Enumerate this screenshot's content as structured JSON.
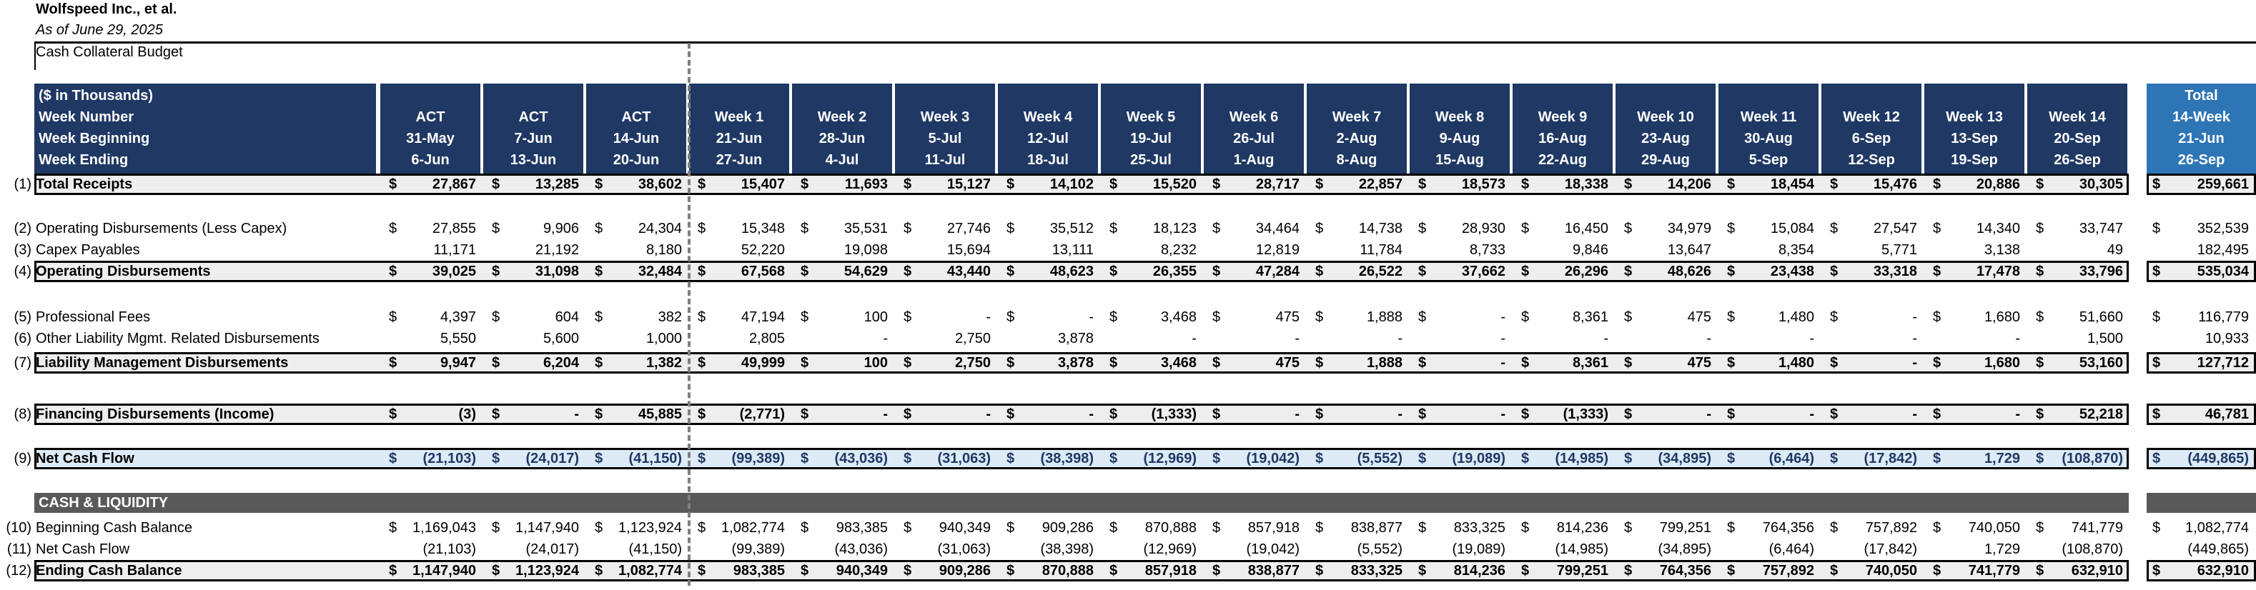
{
  "title": "Wolfspeed Inc., et al.",
  "as_of": "As of June 29, 2025",
  "section_title": "Cash Collateral Budget",
  "header": {
    "label_lines": [
      "($ in Thousands)",
      "Week Number",
      "Week Beginning",
      "Week Ending"
    ],
    "columns": [
      {
        "l1": "ACT",
        "l2": "31-May",
        "l3": "6-Jun"
      },
      {
        "l1": "ACT",
        "l2": "7-Jun",
        "l3": "13-Jun"
      },
      {
        "l1": "ACT",
        "l2": "14-Jun",
        "l3": "20-Jun"
      },
      {
        "l1": "Week 1",
        "l2": "21-Jun",
        "l3": "27-Jun"
      },
      {
        "l1": "Week 2",
        "l2": "28-Jun",
        "l3": "4-Jul"
      },
      {
        "l1": "Week 3",
        "l2": "5-Jul",
        "l3": "11-Jul"
      },
      {
        "l1": "Week 4",
        "l2": "12-Jul",
        "l3": "18-Jul"
      },
      {
        "l1": "Week 5",
        "l2": "19-Jul",
        "l3": "25-Jul"
      },
      {
        "l1": "Week 6",
        "l2": "26-Jul",
        "l3": "1-Aug"
      },
      {
        "l1": "Week 7",
        "l2": "2-Aug",
        "l3": "8-Aug"
      },
      {
        "l1": "Week 8",
        "l2": "9-Aug",
        "l3": "15-Aug"
      },
      {
        "l1": "Week 9",
        "l2": "16-Aug",
        "l3": "22-Aug"
      },
      {
        "l1": "Week 10",
        "l2": "23-Aug",
        "l3": "29-Aug"
      },
      {
        "l1": "Week 11",
        "l2": "30-Aug",
        "l3": "5-Sep"
      },
      {
        "l1": "Week 12",
        "l2": "6-Sep",
        "l3": "12-Sep"
      },
      {
        "l1": "Week 13",
        "l2": "13-Sep",
        "l3": "19-Sep"
      },
      {
        "l1": "Week 14",
        "l2": "20-Sep",
        "l3": "26-Sep"
      }
    ],
    "total": {
      "l0": "Total",
      "l1": "14-Week",
      "l2": "21-Jun",
      "l3": "26-Sep"
    }
  },
  "rows": [
    {
      "idx": "(1)",
      "label": "Total Receipts",
      "style": "boxed",
      "dollar": true,
      "values": [
        "27,867",
        "13,285",
        "38,602",
        "15,407",
        "11,693",
        "15,127",
        "14,102",
        "15,520",
        "28,717",
        "22,857",
        "18,573",
        "18,338",
        "14,206",
        "18,454",
        "15,476",
        "20,886",
        "30,305"
      ],
      "total": "259,661"
    },
    {
      "idx": "(2)",
      "label": "Operating Disbursements (Less Capex)",
      "style": "plain",
      "dollar": true,
      "values": [
        "27,855",
        "9,906",
        "24,304",
        "15,348",
        "35,531",
        "27,746",
        "35,512",
        "18,123",
        "34,464",
        "14,738",
        "28,930",
        "16,450",
        "34,979",
        "15,084",
        "27,547",
        "14,340",
        "33,747"
      ],
      "total": "352,539"
    },
    {
      "idx": "(3)",
      "label": "Capex Payables",
      "style": "plain",
      "dollar": false,
      "values": [
        "11,171",
        "21,192",
        "8,180",
        "52,220",
        "19,098",
        "15,694",
        "13,111",
        "8,232",
        "12,819",
        "11,784",
        "8,733",
        "9,846",
        "13,647",
        "8,354",
        "5,771",
        "3,138",
        "49"
      ],
      "total": "182,495"
    },
    {
      "idx": "(4)",
      "label": "Operating Disbursements",
      "style": "boxed",
      "dollar": true,
      "values": [
        "39,025",
        "31,098",
        "32,484",
        "67,568",
        "54,629",
        "43,440",
        "48,623",
        "26,355",
        "47,284",
        "26,522",
        "37,662",
        "26,296",
        "48,626",
        "23,438",
        "33,318",
        "17,478",
        "33,796"
      ],
      "total": "535,034"
    },
    {
      "idx": "(5)",
      "label": "Professional Fees",
      "style": "plain",
      "dollar": true,
      "values": [
        "4,397",
        "604",
        "382",
        "47,194",
        "100",
        "-",
        "-",
        "3,468",
        "475",
        "1,888",
        "-",
        "8,361",
        "475",
        "1,480",
        "-",
        "1,680",
        "51,660"
      ],
      "total": "116,779"
    },
    {
      "idx": "(6)",
      "label": "Other Liability Mgmt. Related Disbursements",
      "style": "plain",
      "dollar": false,
      "values": [
        "5,550",
        "5,600",
        "1,000",
        "2,805",
        "-",
        "2,750",
        "3,878",
        "-",
        "-",
        "-",
        "-",
        "-",
        "-",
        "-",
        "-",
        "-",
        "1,500"
      ],
      "total": "10,933"
    },
    {
      "idx": "(7)",
      "label": "Liability Management Disbursements",
      "style": "boxed",
      "dollar": true,
      "values": [
        "9,947",
        "6,204",
        "1,382",
        "49,999",
        "100",
        "2,750",
        "3,878",
        "3,468",
        "475",
        "1,888",
        "-",
        "8,361",
        "475",
        "1,480",
        "-",
        "1,680",
        "53,160"
      ],
      "total": "127,712"
    },
    {
      "idx": "(8)",
      "label": "Financing Disbursements (Income)",
      "style": "boxed",
      "dollar": true,
      "values": [
        "(3)",
        "-",
        "45,885",
        "(2,771)",
        "-",
        "-",
        "-",
        "(1,333)",
        "-",
        "-",
        "-",
        "(1,333)",
        "-",
        "-",
        "-",
        "-",
        "52,218"
      ],
      "total": "46,781"
    },
    {
      "idx": "(9)",
      "label": "Net Cash Flow",
      "style": "net",
      "dollar": true,
      "values": [
        "(21,103)",
        "(24,017)",
        "(41,150)",
        "(99,389)",
        "(43,036)",
        "(31,063)",
        "(38,398)",
        "(12,969)",
        "(19,042)",
        "(5,552)",
        "(19,089)",
        "(14,985)",
        "(34,895)",
        "(6,464)",
        "(17,842)",
        "1,729",
        "(108,870)"
      ],
      "total": "(449,865)"
    },
    {
      "idx": "(10)",
      "label": "Beginning Cash Balance",
      "style": "plain",
      "dollar": true,
      "values": [
        "1,169,043",
        "1,147,940",
        "1,123,924",
        "1,082,774",
        "983,385",
        "940,349",
        "909,286",
        "870,888",
        "857,918",
        "838,877",
        "833,325",
        "814,236",
        "799,251",
        "764,356",
        "757,892",
        "740,050",
        "741,779"
      ],
      "total": "1,082,774"
    },
    {
      "idx": "(11)",
      "label": "Net Cash Flow",
      "style": "plain",
      "dollar": false,
      "values": [
        "(21,103)",
        "(24,017)",
        "(41,150)",
        "(99,389)",
        "(43,036)",
        "(31,063)",
        "(38,398)",
        "(12,969)",
        "(19,042)",
        "(5,552)",
        "(19,089)",
        "(14,985)",
        "(34,895)",
        "(6,464)",
        "(17,842)",
        "1,729",
        "(108,870)"
      ],
      "total": "(449,865)"
    },
    {
      "idx": "(12)",
      "label": "Ending Cash Balance",
      "style": "boxed",
      "dollar": true,
      "values": [
        "1,147,940",
        "1,123,924",
        "1,082,774",
        "983,385",
        "940,349",
        "909,286",
        "870,888",
        "857,918",
        "838,877",
        "833,325",
        "814,236",
        "799,251",
        "764,356",
        "757,892",
        "740,050",
        "741,779",
        "632,910"
      ],
      "total": "632,910"
    }
  ],
  "cash_section_label": "CASH & LIQUIDITY",
  "currency_symbol": "$",
  "colors": {
    "header_navy": "#1f3864",
    "header_total": "#2e75b6",
    "band_gray": "#eeeeee",
    "band_blue": "#ddebf7",
    "section_gray": "#595959"
  }
}
